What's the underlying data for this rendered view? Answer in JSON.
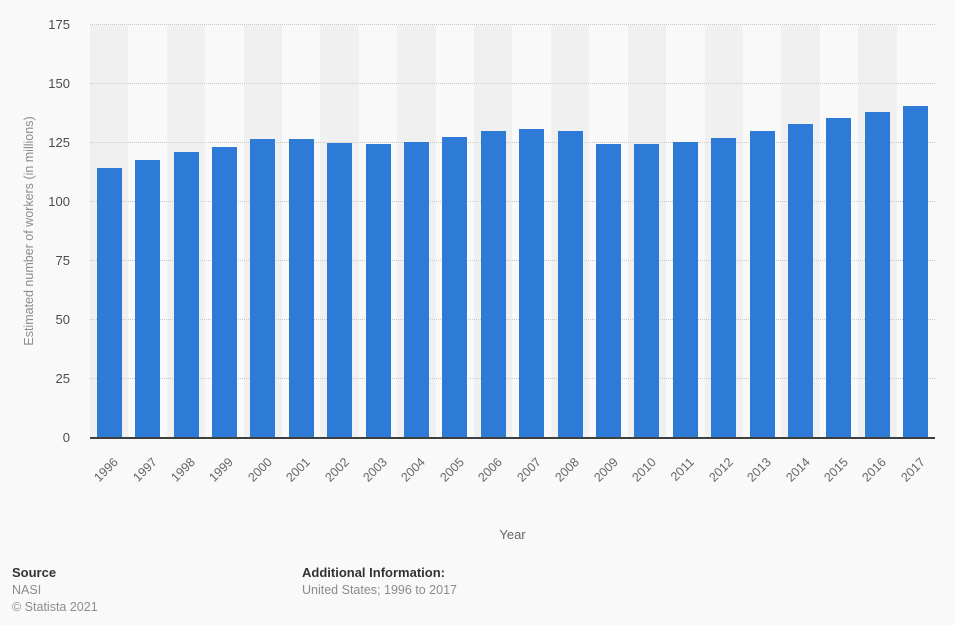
{
  "chart_data": {
    "type": "bar",
    "title": "",
    "categories": [
      "1996",
      "1997",
      "1998",
      "1999",
      "2000",
      "2001",
      "2002",
      "2003",
      "2004",
      "2005",
      "2006",
      "2007",
      "2008",
      "2009",
      "2010",
      "2011",
      "2012",
      "2013",
      "2014",
      "2015",
      "2016",
      "2017"
    ],
    "values": [
      114.5,
      118,
      121,
      123.5,
      126.5,
      126.5,
      125,
      124.5,
      125.5,
      127.5,
      130,
      131,
      130,
      124.5,
      124.5,
      125.5,
      127,
      130,
      133,
      135.5,
      138,
      140.5
    ],
    "xlabel": "Year",
    "ylabel": "Estimated number of workers (in millions)",
    "ylim": [
      0,
      175
    ],
    "yticks": [
      0,
      25,
      50,
      75,
      100,
      125,
      150,
      175
    ],
    "grid": "horizontal-dotted",
    "legend": "none",
    "bar_color": "#2d7bd6",
    "stripe_color": "#f0f0f0",
    "background_color": "#f9f9f9",
    "axis_line_color": "#3f3f3f"
  },
  "footer": {
    "source_label": "Source",
    "source_value": "NASI",
    "copyright": "© Statista 2021",
    "additional_label": "Additional Information:",
    "additional_value": "United States; 1996 to 2017"
  }
}
